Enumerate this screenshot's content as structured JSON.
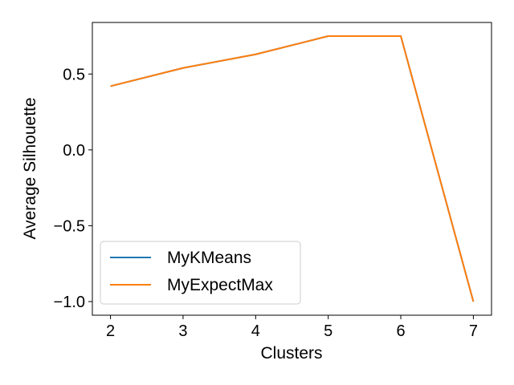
{
  "chart_data": {
    "type": "line",
    "xlabel": "Clusters",
    "ylabel": "Average Silhouette",
    "x": [
      2,
      3,
      4,
      5,
      6,
      7
    ],
    "xlim": [
      1.75,
      7.25
    ],
    "ylim": [
      -1.09,
      0.84
    ],
    "x_ticks": [
      2,
      3,
      4,
      5,
      6,
      7
    ],
    "y_ticks": [
      0.5,
      0.0,
      -0.5,
      -1.0
    ],
    "y_tick_labels": [
      "0.5",
      "0.0",
      "−0.5",
      "−1.0"
    ],
    "grid": false,
    "legend_position": "lower-left",
    "series": [
      {
        "name": "MyKMeans",
        "color": "#1f77b4",
        "values": [
          0.42,
          0.54,
          0.63,
          0.75,
          0.75,
          -1.0
        ]
      },
      {
        "name": "MyExpectMax",
        "color": "#ff7f0e",
        "values": [
          0.42,
          0.54,
          0.63,
          0.75,
          0.75,
          -1.0
        ]
      }
    ]
  }
}
